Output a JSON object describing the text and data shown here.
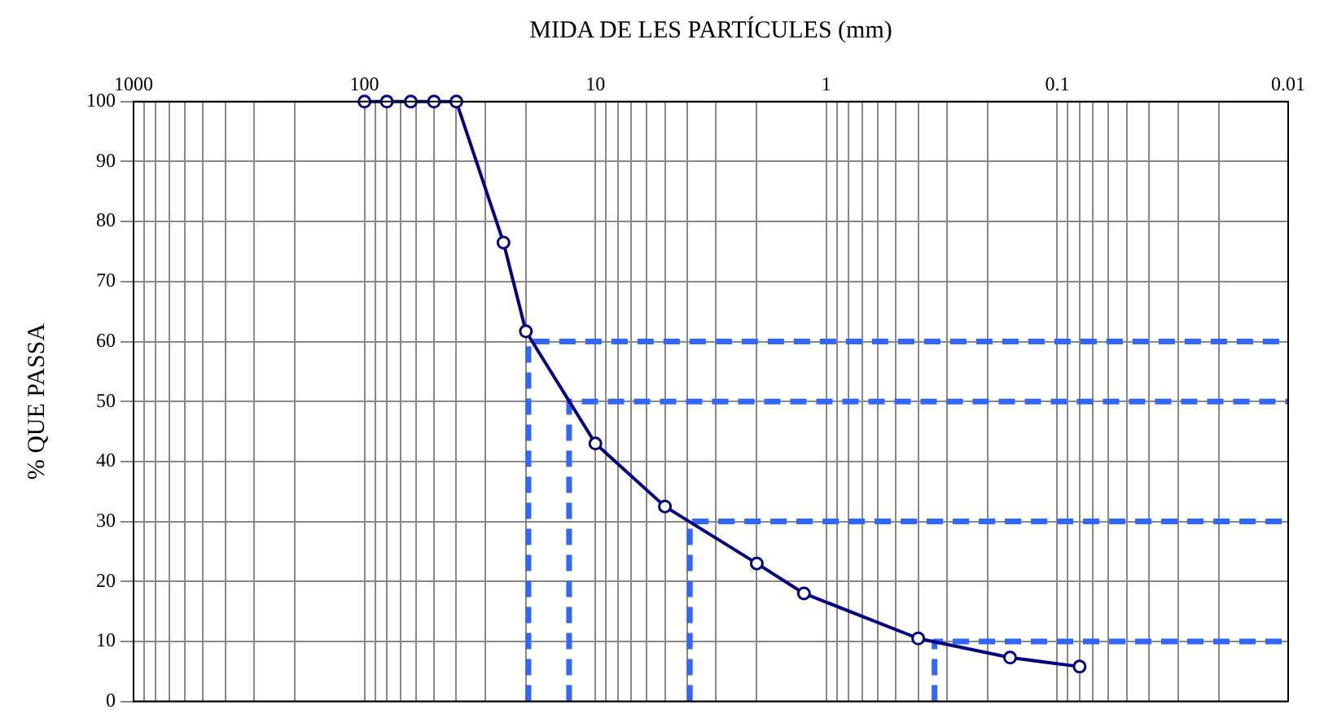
{
  "chart_data": {
    "type": "line",
    "xlabel": "MIDA DE LES PARTÍCULES (mm)",
    "ylabel": "% QUE PASSA",
    "log": "x",
    "xlim": [
      1000,
      0.01
    ],
    "ylim": [
      0,
      100
    ],
    "xticks": [
      1000,
      {
        "value": 900,
        "label": null
      },
      {
        "value": 800,
        "label": null
      },
      {
        "value": 700,
        "label": null
      },
      {
        "value": 600,
        "label": null
      },
      {
        "value": 500,
        "label": null
      },
      {
        "value": 400,
        "label": null
      },
      {
        "value": 300,
        "label": null
      },
      {
        "value": 200,
        "label": null
      },
      100,
      {
        "value": 90,
        "label": null
      },
      {
        "value": 80,
        "label": null
      },
      {
        "value": 70,
        "label": null
      },
      {
        "value": 60,
        "label": null
      },
      {
        "value": 50,
        "label": null
      },
      {
        "value": 40,
        "label": null
      },
      {
        "value": 30,
        "label": null
      },
      {
        "value": 20,
        "label": null
      },
      10,
      {
        "value": 9,
        "label": null
      },
      {
        "value": 8,
        "label": null
      },
      {
        "value": 7,
        "label": null
      },
      {
        "value": 6,
        "label": null
      },
      {
        "value": 5,
        "label": null
      },
      {
        "value": 4,
        "label": null
      },
      {
        "value": 3,
        "label": null
      },
      {
        "value": 2,
        "label": null
      },
      1,
      {
        "value": 0.9,
        "label": null
      },
      {
        "value": 0.8,
        "label": null
      },
      {
        "value": 0.7,
        "label": null
      },
      {
        "value": 0.6,
        "label": null
      },
      {
        "value": 0.5,
        "label": null
      },
      {
        "value": 0.4,
        "label": null
      },
      {
        "value": 0.3,
        "label": null
      },
      {
        "value": 0.2,
        "label": null
      },
      0.1,
      {
        "value": 0.09,
        "label": null
      },
      {
        "value": 0.08,
        "label": null
      },
      {
        "value": 0.07,
        "label": null
      },
      {
        "value": 0.06,
        "label": null
      },
      {
        "value": 0.05,
        "label": null
      },
      {
        "value": 0.04,
        "label": null
      },
      {
        "value": 0.03,
        "label": null
      },
      {
        "value": 0.02,
        "label": null
      },
      0.01
    ],
    "yticks": [
      0,
      10,
      20,
      30,
      40,
      50,
      60,
      70,
      80,
      90,
      100
    ],
    "grid": true,
    "series": [
      {
        "color": "#000080",
        "marker": "circle",
        "line_style": "solid",
        "x": [
          100,
          80,
          63,
          50,
          40,
          25,
          20,
          10,
          5,
          2,
          1.25,
          0.4,
          0.16,
          0.08
        ],
        "values": [
          100,
          100,
          100,
          100,
          100,
          76.5,
          61.7,
          43,
          32.5,
          23,
          18,
          10.5,
          7.3,
          5.8
        ]
      },
      {
        "color": "#3366ff",
        "marker": "none",
        "line_style": "dashed",
        "x": [
          19.5,
          19.5,
          0.01
        ],
        "values": [
          0,
          60,
          60
        ]
      },
      {
        "color": "#3366ff",
        "marker": "none",
        "line_style": "dashed",
        "x": [
          13,
          13,
          0.01
        ],
        "values": [
          0,
          50,
          50
        ]
      },
      {
        "color": "#3366ff",
        "marker": "none",
        "line_style": "dashed",
        "x": [
          3.9,
          3.9,
          0.01
        ],
        "values": [
          0,
          30,
          30
        ]
      },
      {
        "color": "#3366ff",
        "marker": "none",
        "line_style": "dashed",
        "x": [
          0.34,
          0.34,
          0.01
        ],
        "values": [
          0,
          10,
          10
        ]
      }
    ]
  }
}
